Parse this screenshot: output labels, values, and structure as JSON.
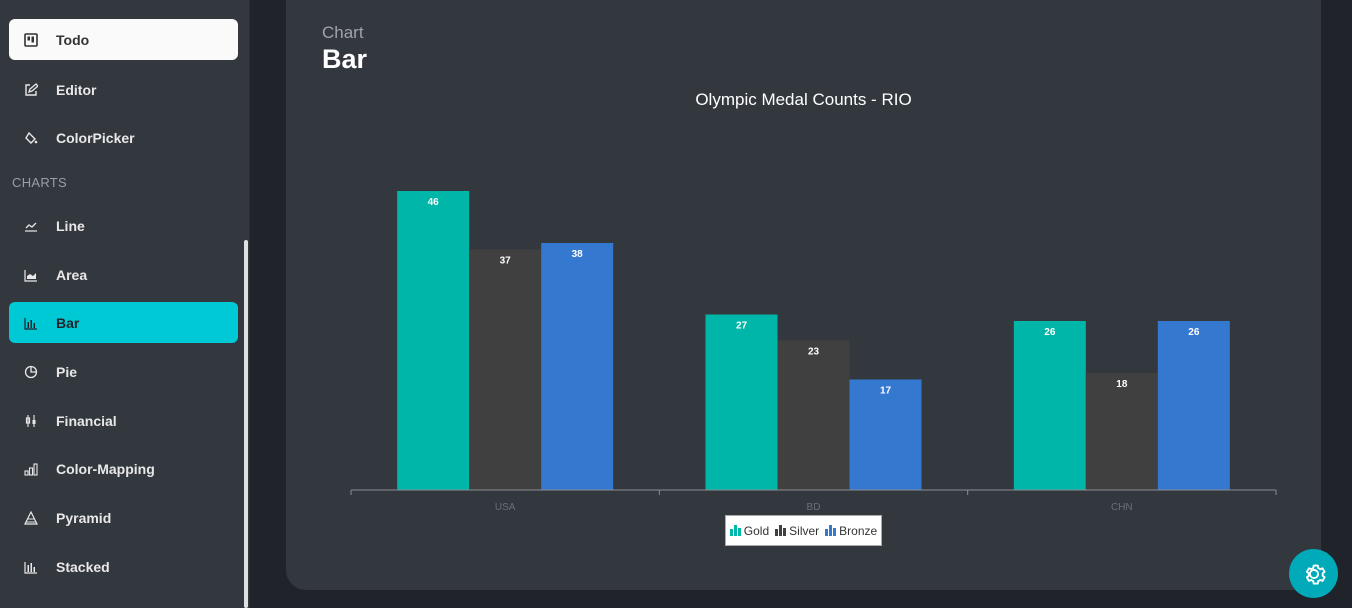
{
  "sidebar": {
    "items": [
      {
        "label": "Todo",
        "icon": "kanban-icon"
      },
      {
        "label": "Editor",
        "icon": "edit-icon"
      },
      {
        "label": "ColorPicker",
        "icon": "paint-bucket-icon"
      },
      {
        "label": "Line",
        "icon": "line-chart-icon"
      },
      {
        "label": "Area",
        "icon": "area-chart-icon"
      },
      {
        "label": "Bar",
        "icon": "bar-chart-icon"
      },
      {
        "label": "Pie",
        "icon": "pie-chart-icon"
      },
      {
        "label": "Financial",
        "icon": "candlestick-icon"
      },
      {
        "label": "Color-Mapping",
        "icon": "color-mapping-icon"
      },
      {
        "label": "Pyramid",
        "icon": "pyramid-icon"
      },
      {
        "label": "Stacked",
        "icon": "stacked-chart-icon"
      }
    ],
    "section_charts": "CHARTS"
  },
  "header": {
    "crumb": "Chart",
    "title": "Bar"
  },
  "colors": {
    "accent": "#00c9d6",
    "gold": "#00b6a8",
    "silver": "#404040",
    "bronze": "#3578d0"
  },
  "chart_data": {
    "type": "bar",
    "title": "Olympic Medal Counts - RIO",
    "categories": [
      "USA",
      "BD",
      "CHN"
    ],
    "series": [
      {
        "name": "Gold",
        "values": [
          46,
          27,
          26
        ]
      },
      {
        "name": "Silver",
        "values": [
          37,
          23,
          18
        ]
      },
      {
        "name": "Bronze",
        "values": [
          38,
          17,
          26
        ]
      }
    ],
    "ylim": [
      0,
      60
    ],
    "grid": false,
    "legend": "bottom"
  },
  "settings": {
    "icon": "gear-icon"
  }
}
